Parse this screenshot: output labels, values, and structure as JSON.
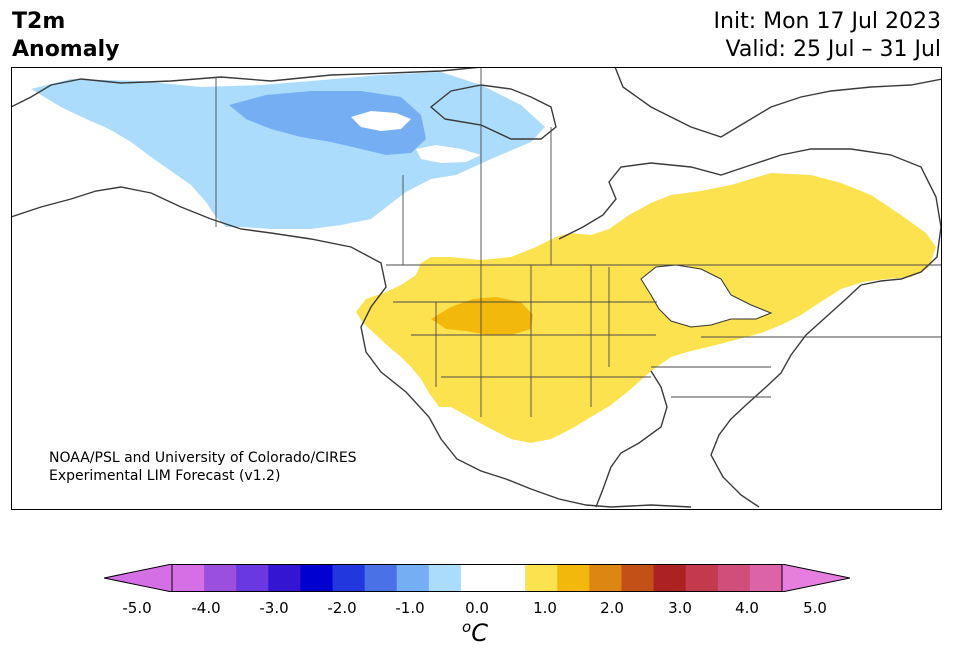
{
  "header": {
    "variable": "T2m",
    "subtitle": "Anomaly",
    "init": "Init: Mon 17 Jul 2023",
    "valid": "Valid: 25 Jul – 31 Jul"
  },
  "credit": {
    "line1": "NOAA/PSL and University of Colorado/CIRES",
    "line2": "Experimental LIM Forecast (v1.2)"
  },
  "colorbar": {
    "unit_base": "C",
    "unit_sup": "o",
    "tick_labels": [
      "-5.0",
      "-4.0",
      "-3.0",
      "-2.0",
      "-1.0",
      "0.0",
      "1.0",
      "2.0",
      "3.0",
      "4.0",
      "5.0"
    ],
    "colors": [
      "#d56fe6",
      "#9a4fdd",
      "#6a38e0",
      "#3415d2",
      "#0000cf",
      "#2237dd",
      "#4a72e6",
      "#76aef3",
      "#acdcfb",
      "#ffffff",
      "#ffffff",
      "#fde24f",
      "#f2b80c",
      "#de8612",
      "#c35016",
      "#ac2222",
      "#c23a4c",
      "#cf4e7a",
      "#dc64a6"
    ],
    "under_color": "#d56fe6",
    "over_color": "#e67ee0"
  },
  "map": {
    "region": "North America",
    "anomaly_colors": {
      "cool_light": "#acdcfb",
      "cool_medium": "#76aef3",
      "warm_light": "#fde24f",
      "warm_medium": "#f2b80c"
    }
  }
}
